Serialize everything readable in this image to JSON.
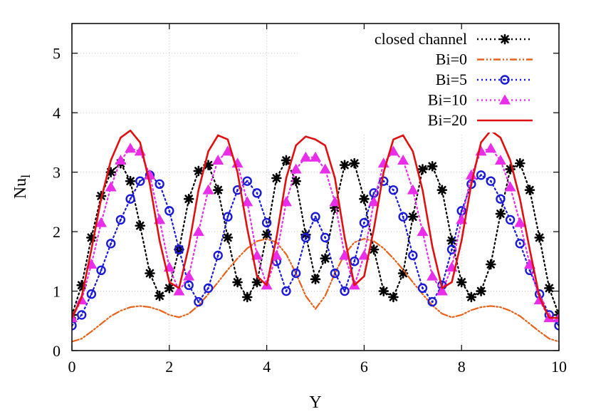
{
  "chart_data": {
    "type": "line",
    "xlabel": "Y",
    "ylabel_main": "Nu",
    "ylabel_sub": "l",
    "xlim": [
      0,
      10
    ],
    "ylim": [
      0,
      5.5
    ],
    "xticks": [
      0,
      2,
      4,
      6,
      8,
      10
    ],
    "yticks": [
      0,
      1,
      2,
      3,
      4,
      5
    ],
    "grid": true,
    "legend_position": "top-right",
    "series": [
      {
        "name": "closed channel",
        "color": "#000000",
        "line": "dotted",
        "marker": "star",
        "x": [
          0,
          0.2,
          0.4,
          0.6,
          0.8,
          1.0,
          1.2,
          1.4,
          1.6,
          1.8,
          2.0,
          2.2,
          2.4,
          2.6,
          2.8,
          3.0,
          3.2,
          3.4,
          3.6,
          3.8,
          4.0,
          4.2,
          4.4,
          4.6,
          4.8,
          5.0,
          5.2,
          5.4,
          5.6,
          5.8,
          6.0,
          6.2,
          6.4,
          6.6,
          6.8,
          7.0,
          7.2,
          7.4,
          7.6,
          7.8,
          8.0,
          8.2,
          8.4,
          8.6,
          8.8,
          9.0,
          9.2,
          9.4,
          9.6,
          9.8,
          10.0
        ],
        "y": [
          0.6,
          1.1,
          1.9,
          2.6,
          3.0,
          3.15,
          2.85,
          2.1,
          1.3,
          0.92,
          1.05,
          1.7,
          2.55,
          3.02,
          3.12,
          2.7,
          1.9,
          1.15,
          0.9,
          1.15,
          1.95,
          2.9,
          3.2,
          2.85,
          1.95,
          1.2,
          1.55,
          2.4,
          3.12,
          3.15,
          2.55,
          1.7,
          1.0,
          0.9,
          1.3,
          2.25,
          3.05,
          3.1,
          2.7,
          1.85,
          1.15,
          0.9,
          1.0,
          1.45,
          2.3,
          3.05,
          3.15,
          2.7,
          1.9,
          1.05,
          0.6
        ]
      },
      {
        "name": "Bi=0",
        "color": "#e8621a",
        "line": "dash-dot-dot",
        "marker": "none",
        "x": [
          0,
          0.2,
          0.4,
          0.6,
          0.8,
          1.0,
          1.2,
          1.4,
          1.6,
          1.8,
          2.0,
          2.2,
          2.4,
          2.6,
          2.8,
          3.0,
          3.2,
          3.4,
          3.6,
          3.8,
          4.0,
          4.2,
          4.4,
          4.6,
          4.8,
          5.0,
          5.2,
          5.4,
          5.6,
          5.8,
          6.0,
          6.2,
          6.4,
          6.6,
          6.8,
          7.0,
          7.2,
          7.4,
          7.6,
          7.8,
          8.0,
          8.2,
          8.4,
          8.6,
          8.8,
          9.0,
          9.2,
          9.4,
          9.6,
          9.8,
          10.0
        ],
        "y": [
          0.15,
          0.2,
          0.32,
          0.45,
          0.58,
          0.67,
          0.73,
          0.75,
          0.73,
          0.68,
          0.6,
          0.56,
          0.62,
          0.76,
          0.95,
          1.15,
          1.36,
          1.55,
          1.72,
          1.84,
          1.88,
          1.82,
          1.62,
          1.3,
          0.92,
          0.7,
          0.92,
          1.3,
          1.62,
          1.82,
          1.88,
          1.84,
          1.72,
          1.55,
          1.36,
          1.15,
          0.95,
          0.76,
          0.62,
          0.56,
          0.6,
          0.68,
          0.73,
          0.75,
          0.73,
          0.67,
          0.58,
          0.45,
          0.32,
          0.2,
          0.15
        ]
      },
      {
        "name": "Bi=5",
        "color": "#1a1ad6",
        "line": "dotted",
        "marker": "circle",
        "x": [
          0,
          0.2,
          0.4,
          0.6,
          0.8,
          1.0,
          1.2,
          1.4,
          1.6,
          1.8,
          2.0,
          2.2,
          2.4,
          2.6,
          2.8,
          3.0,
          3.2,
          3.4,
          3.6,
          3.8,
          4.0,
          4.2,
          4.4,
          4.6,
          4.8,
          5.0,
          5.2,
          5.4,
          5.6,
          5.8,
          6.0,
          6.2,
          6.4,
          6.6,
          6.8,
          7.0,
          7.2,
          7.4,
          7.6,
          7.8,
          8.0,
          8.2,
          8.4,
          8.6,
          8.8,
          9.0,
          9.2,
          9.4,
          9.6,
          9.8,
          10.0
        ],
        "y": [
          0.42,
          0.6,
          0.95,
          1.35,
          1.8,
          2.2,
          2.55,
          2.85,
          2.95,
          2.8,
          2.35,
          1.7,
          1.1,
          0.82,
          1.05,
          1.6,
          2.25,
          2.7,
          2.85,
          2.65,
          2.15,
          1.5,
          1.0,
          1.3,
          1.9,
          2.25,
          1.9,
          1.3,
          1.0,
          1.5,
          2.15,
          2.65,
          2.85,
          2.7,
          2.25,
          1.6,
          1.05,
          0.82,
          1.1,
          1.7,
          2.35,
          2.8,
          2.95,
          2.85,
          2.55,
          2.2,
          1.8,
          1.35,
          0.95,
          0.6,
          0.42
        ]
      },
      {
        "name": "Bi=10",
        "color": "#e82ee8",
        "line": "dotted",
        "marker": "triangle",
        "x": [
          0,
          0.2,
          0.4,
          0.6,
          0.8,
          1.0,
          1.2,
          1.4,
          1.6,
          1.8,
          2.0,
          2.2,
          2.4,
          2.6,
          2.8,
          3.0,
          3.2,
          3.4,
          3.6,
          3.8,
          4.0,
          4.2,
          4.4,
          4.6,
          4.8,
          5.0,
          5.2,
          5.4,
          5.6,
          5.8,
          6.0,
          6.2,
          6.4,
          6.6,
          6.8,
          7.0,
          7.2,
          7.4,
          7.6,
          7.8,
          8.0,
          8.2,
          8.4,
          8.6,
          8.8,
          9.0,
          9.2,
          9.4,
          9.6,
          9.8,
          10.0
        ],
        "y": [
          0.55,
          0.85,
          1.45,
          2.15,
          2.75,
          3.2,
          3.4,
          3.35,
          2.95,
          2.2,
          1.4,
          1.0,
          1.25,
          2.0,
          2.7,
          3.2,
          3.35,
          3.15,
          2.5,
          1.6,
          1.1,
          1.6,
          2.5,
          3.05,
          3.25,
          3.25,
          3.05,
          2.5,
          1.6,
          1.1,
          1.6,
          2.5,
          3.15,
          3.35,
          3.2,
          2.7,
          2.0,
          1.25,
          1.0,
          1.4,
          2.2,
          2.95,
          3.35,
          3.4,
          3.2,
          2.75,
          2.15,
          1.45,
          0.85,
          0.55,
          0.55
        ]
      },
      {
        "name": "Bi=20",
        "color": "#e01010",
        "line": "solid",
        "marker": "none",
        "x": [
          0,
          0.2,
          0.4,
          0.6,
          0.8,
          1.0,
          1.2,
          1.4,
          1.6,
          1.8,
          2.0,
          2.2,
          2.4,
          2.6,
          2.8,
          3.0,
          3.2,
          3.4,
          3.6,
          3.8,
          4.0,
          4.2,
          4.4,
          4.6,
          4.8,
          5.0,
          5.2,
          5.4,
          5.6,
          5.8,
          6.0,
          6.2,
          6.4,
          6.6,
          6.8,
          7.0,
          7.2,
          7.4,
          7.6,
          7.8,
          8.0,
          8.2,
          8.4,
          8.6,
          8.8,
          9.0,
          9.2,
          9.4,
          9.6,
          9.8,
          10.0
        ],
        "y": [
          0.55,
          0.9,
          1.7,
          2.55,
          3.2,
          3.58,
          3.7,
          3.5,
          2.8,
          1.85,
          1.15,
          1.05,
          1.75,
          2.7,
          3.35,
          3.62,
          3.55,
          3.0,
          2.05,
          1.25,
          1.1,
          1.9,
          2.9,
          3.45,
          3.6,
          3.55,
          3.45,
          2.9,
          1.9,
          1.1,
          1.25,
          2.05,
          3.0,
          3.55,
          3.62,
          3.35,
          2.7,
          1.75,
          1.05,
          1.15,
          1.85,
          2.8,
          3.5,
          3.7,
          3.58,
          3.2,
          2.55,
          1.7,
          0.9,
          0.55,
          0.55
        ]
      }
    ]
  }
}
